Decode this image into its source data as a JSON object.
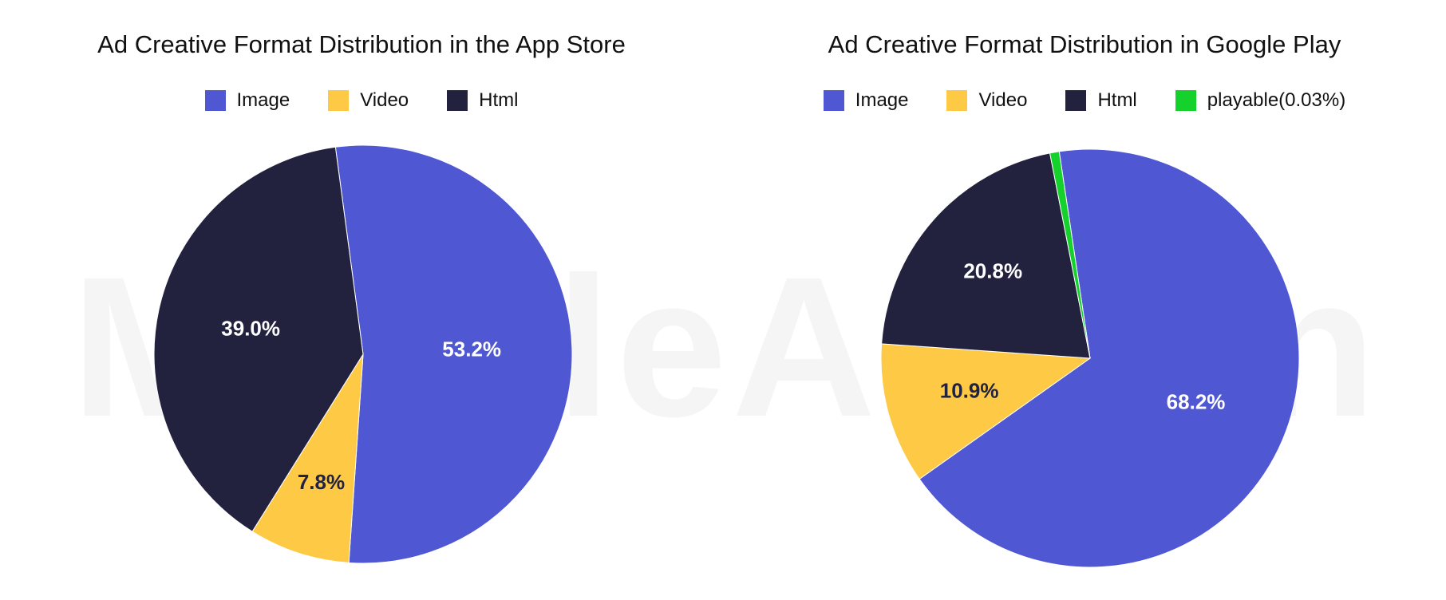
{
  "watermark": "MobileAction",
  "chart_data": [
    {
      "type": "pie",
      "title": "Ad Creative Format Distribution in the App Store",
      "legend": "top",
      "slices": [
        {
          "name": "Image",
          "value": 53.2,
          "label": "53.2%",
          "color": "#4F57D3",
          "label_color": "#ffffff"
        },
        {
          "name": "Video",
          "value": 7.8,
          "label": "7.8%",
          "color": "#FEC944",
          "label_color": "#22223F"
        },
        {
          "name": "Html",
          "value": 39.0,
          "label": "39.0%",
          "color": "#22223F",
          "label_color": "#ffffff"
        }
      ]
    },
    {
      "type": "pie",
      "title": "Ad Creative Format Distribution in Google Play",
      "legend": "top",
      "slices": [
        {
          "name": "Image",
          "value": 68.2,
          "label": "68.2%",
          "color": "#4F57D3",
          "label_color": "#ffffff"
        },
        {
          "name": "Video",
          "value": 10.9,
          "label": "10.9%",
          "color": "#FEC944",
          "label_color": "#22223F"
        },
        {
          "name": "Html",
          "value": 20.8,
          "label": "20.8%",
          "color": "#22223F",
          "label_color": "#ffffff"
        },
        {
          "name": "playable(0.03%)",
          "value": 0.03,
          "label": "",
          "color": "#14D12B",
          "label_color": "#ffffff"
        }
      ]
    }
  ]
}
